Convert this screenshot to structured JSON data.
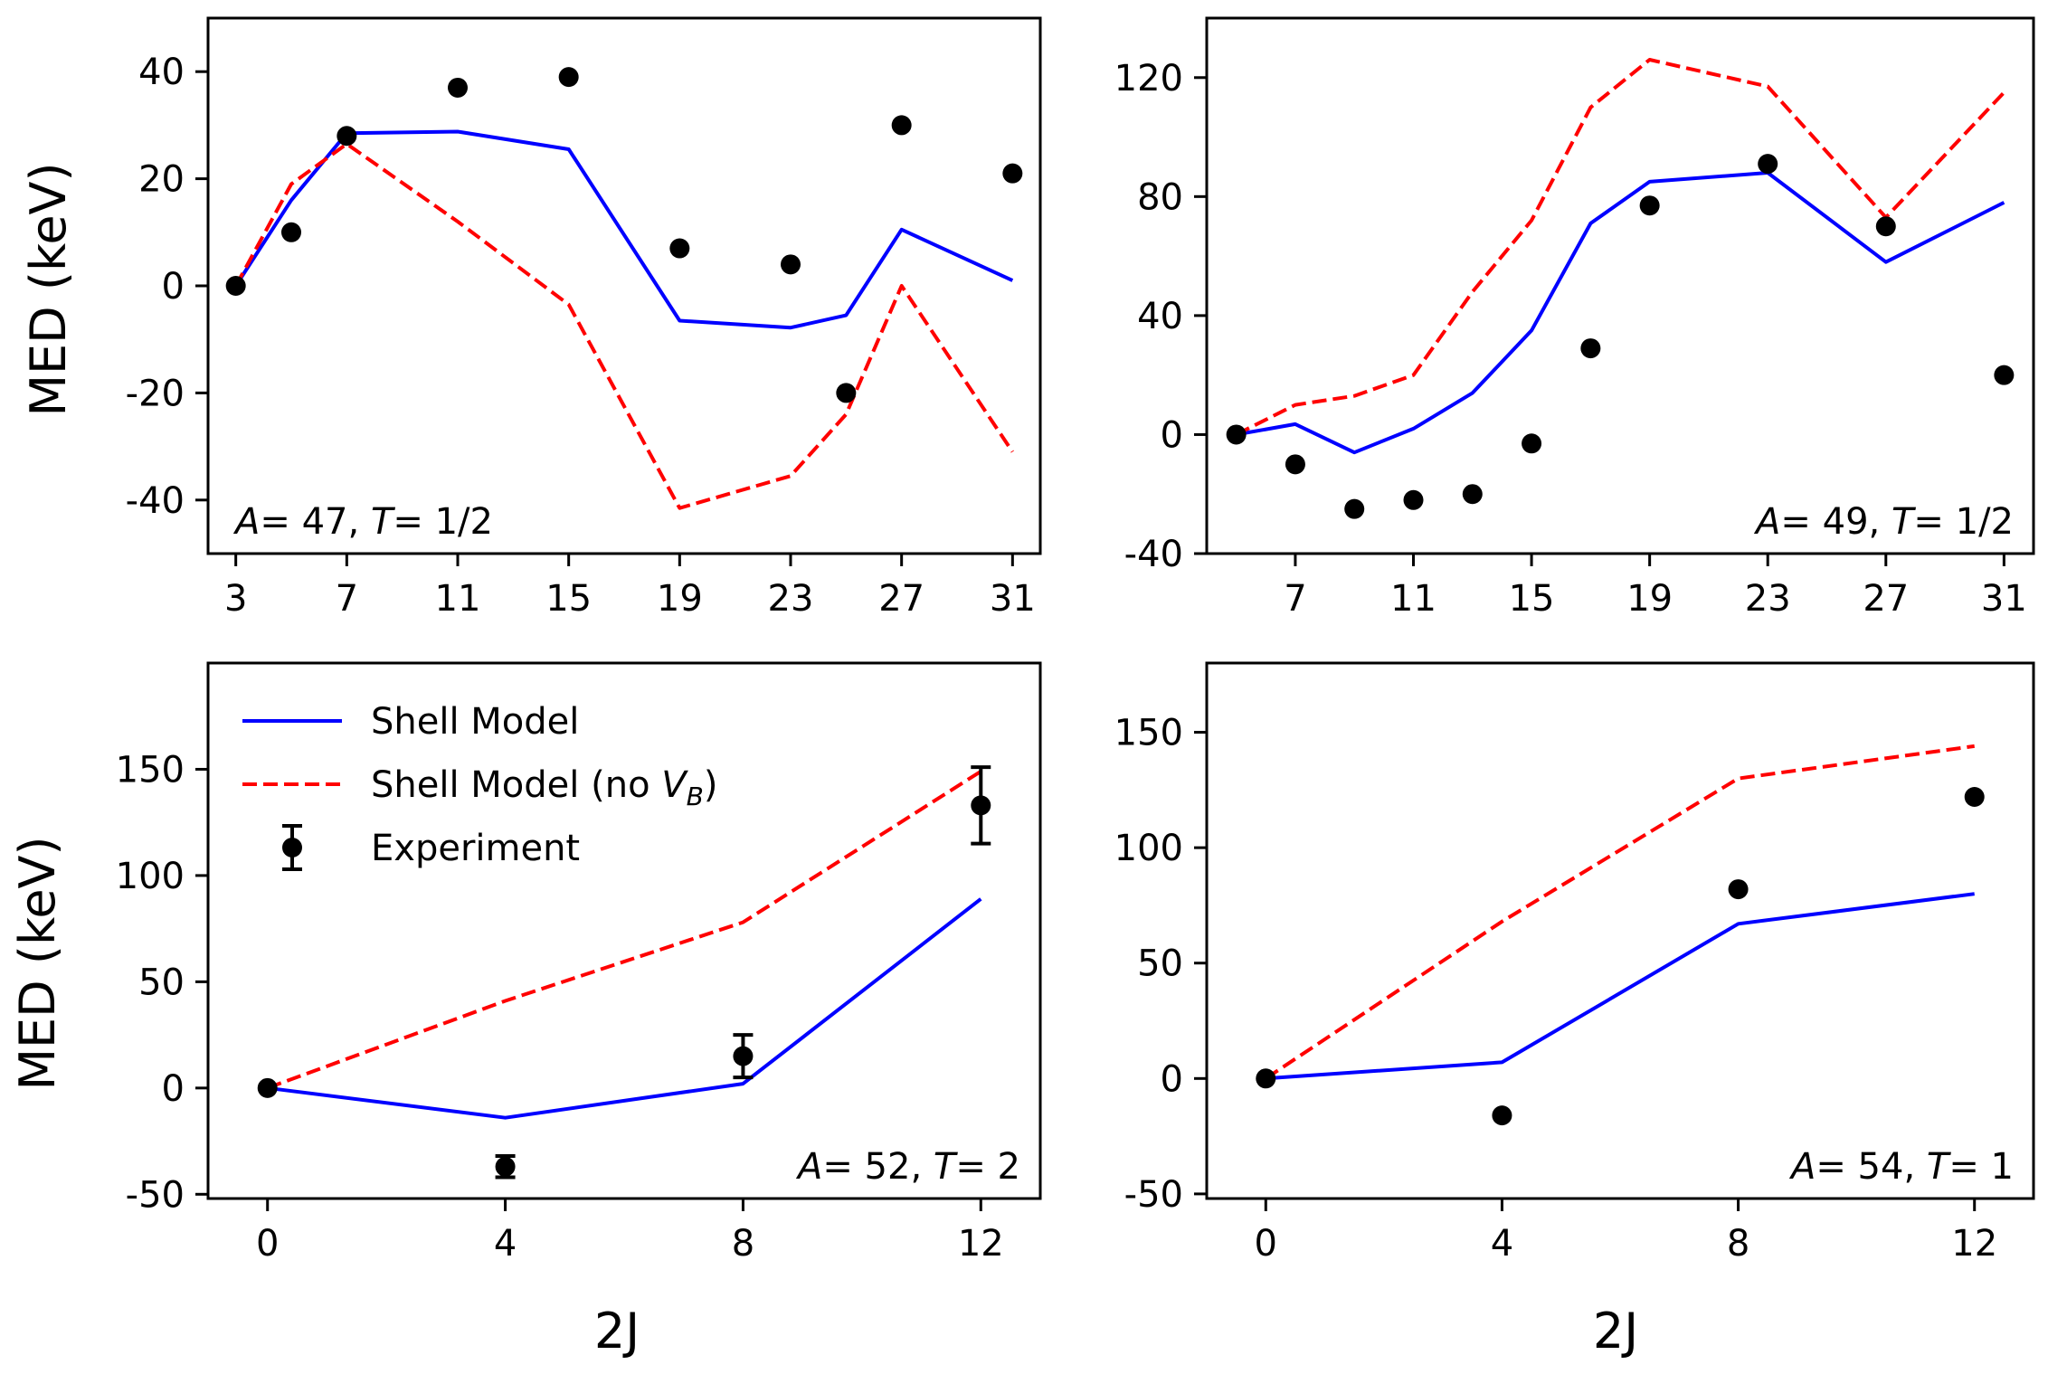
{
  "figure": {
    "ylabel": "MED (keV)",
    "xlabel": "2J"
  },
  "legend": {
    "shell_model": "Shell Model",
    "shell_model_novb_prefix": "Shell Model (no ",
    "shell_model_novb_var": "V",
    "shell_model_novb_sub": "B",
    "shell_model_novb_suffix": ")",
    "experiment": "Experiment"
  },
  "colors": {
    "shell_model": "#0000ff",
    "shell_model_novb": "#ff0000",
    "experiment": "#000000"
  },
  "chart_data": [
    {
      "type": "line",
      "annotation": "A = 47, T = 1/2",
      "xticks": [
        3,
        7,
        11,
        15,
        19,
        23,
        27,
        31
      ],
      "yticks": [
        -40,
        -20,
        0,
        20,
        40
      ],
      "xlim": [
        2,
        32
      ],
      "ylim": [
        -50,
        50
      ],
      "series": [
        {
          "name": "Shell Model",
          "x": [
            3,
            5,
            7,
            11,
            15,
            19,
            23,
            25,
            27,
            31
          ],
          "y": [
            0,
            16,
            28.5,
            28.8,
            25.5,
            -6.5,
            -7.8,
            -5.5,
            10.5,
            1
          ]
        },
        {
          "name": "Shell Model (no VB)",
          "x": [
            3,
            5,
            7,
            11,
            15,
            19,
            23,
            25,
            27,
            31
          ],
          "y": [
            0,
            19,
            26.5,
            12,
            -3.5,
            -41.5,
            -35.5,
            -24,
            0,
            -31
          ]
        },
        {
          "name": "Experiment",
          "x": [
            3,
            5,
            7,
            11,
            15,
            19,
            23,
            25,
            27,
            31
          ],
          "y": [
            0,
            10,
            28,
            37,
            39,
            7,
            4,
            -20,
            30,
            21
          ]
        }
      ]
    },
    {
      "type": "line",
      "annotation": "A = 49, T = 1/2",
      "xticks": [
        7,
        11,
        15,
        19,
        23,
        27,
        31
      ],
      "yticks": [
        -40,
        0,
        40,
        80,
        120
      ],
      "xlim": [
        4,
        32
      ],
      "ylim": [
        -40,
        140
      ],
      "series": [
        {
          "name": "Shell Model",
          "x": [
            5,
            7,
            9,
            11,
            13,
            15,
            17,
            19,
            23,
            27,
            31
          ],
          "y": [
            0,
            3.5,
            -6,
            2,
            14,
            35,
            71,
            85,
            88,
            58,
            78
          ]
        },
        {
          "name": "Shell Model (no VB)",
          "x": [
            5,
            7,
            9,
            11,
            13,
            15,
            17,
            19,
            23,
            27,
            31
          ],
          "y": [
            0,
            10,
            13,
            20,
            48,
            72,
            110,
            126,
            117,
            73,
            115
          ]
        },
        {
          "name": "Experiment",
          "x": [
            5,
            7,
            9,
            11,
            13,
            15,
            17,
            19,
            23,
            27,
            31
          ],
          "y": [
            0,
            -10,
            -25,
            -22,
            -20,
            -3,
            29,
            77,
            91,
            70,
            20
          ]
        }
      ]
    },
    {
      "type": "line",
      "annotation": "A = 52, T = 2",
      "xticks": [
        0,
        4,
        8,
        12
      ],
      "yticks": [
        -50,
        0,
        50,
        100,
        150
      ],
      "xlim": [
        -1,
        13
      ],
      "ylim": [
        -52,
        200
      ],
      "series": [
        {
          "name": "Shell Model",
          "x": [
            0,
            4,
            8,
            12
          ],
          "y": [
            0,
            -14,
            2,
            89
          ]
        },
        {
          "name": "Shell Model (no VB)",
          "x": [
            0,
            4,
            8,
            12
          ],
          "y": [
            0,
            41,
            78,
            149
          ]
        },
        {
          "name": "Experiment",
          "x": [
            0,
            4,
            8,
            12
          ],
          "y": [
            0,
            -37,
            15,
            133
          ],
          "yerr": [
            0,
            5,
            10,
            18
          ]
        }
      ]
    },
    {
      "type": "line",
      "annotation": "A = 54, T = 1",
      "xticks": [
        0,
        4,
        8,
        12
      ],
      "yticks": [
        -50,
        0,
        50,
        100,
        150
      ],
      "xlim": [
        -1,
        13
      ],
      "ylim": [
        -52,
        180
      ],
      "series": [
        {
          "name": "Shell Model",
          "x": [
            0,
            4,
            8,
            12
          ],
          "y": [
            0,
            7,
            67,
            80
          ]
        },
        {
          "name": "Shell Model (no VB)",
          "x": [
            0,
            4,
            8,
            12
          ],
          "y": [
            0,
            68,
            130,
            144
          ]
        },
        {
          "name": "Experiment",
          "x": [
            0,
            4,
            8,
            12
          ],
          "y": [
            0,
            -16,
            82,
            122
          ]
        }
      ]
    }
  ]
}
